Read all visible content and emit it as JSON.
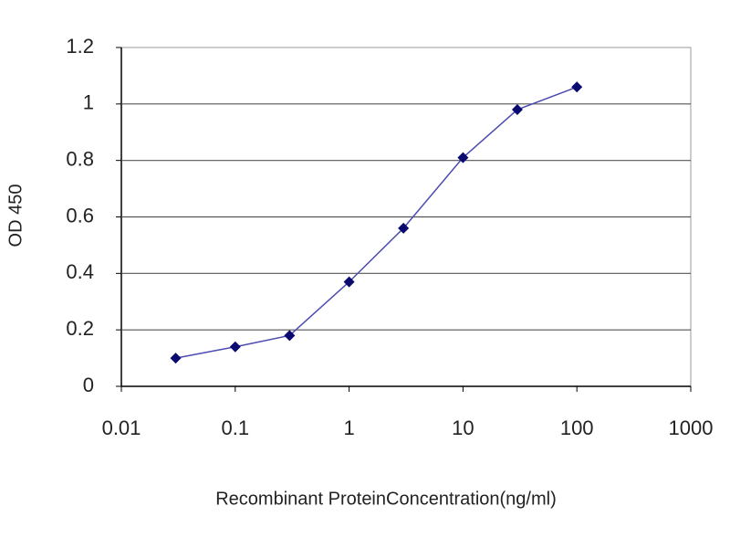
{
  "chart_data": {
    "type": "line",
    "x_label": "Recombinant ProteinConcentration(ng/ml)",
    "y_label": "OD 450",
    "x": [
      0.03,
      0.1,
      0.3,
      1,
      3,
      10,
      30,
      100
    ],
    "values": [
      0.1,
      0.14,
      0.18,
      0.37,
      0.56,
      0.81,
      0.98,
      1.06
    ],
    "color": "#4b4bb0",
    "marker_color": "#0a0a70",
    "xscale": "log",
    "xlim": [
      0.01,
      1000
    ],
    "xticks": [
      0.01,
      0.1,
      1,
      10,
      100,
      1000
    ],
    "ylim": [
      0,
      1.2
    ],
    "yticks": [
      0,
      0.2,
      0.4,
      0.6,
      0.8,
      1,
      1.2
    ],
    "grid": true
  }
}
